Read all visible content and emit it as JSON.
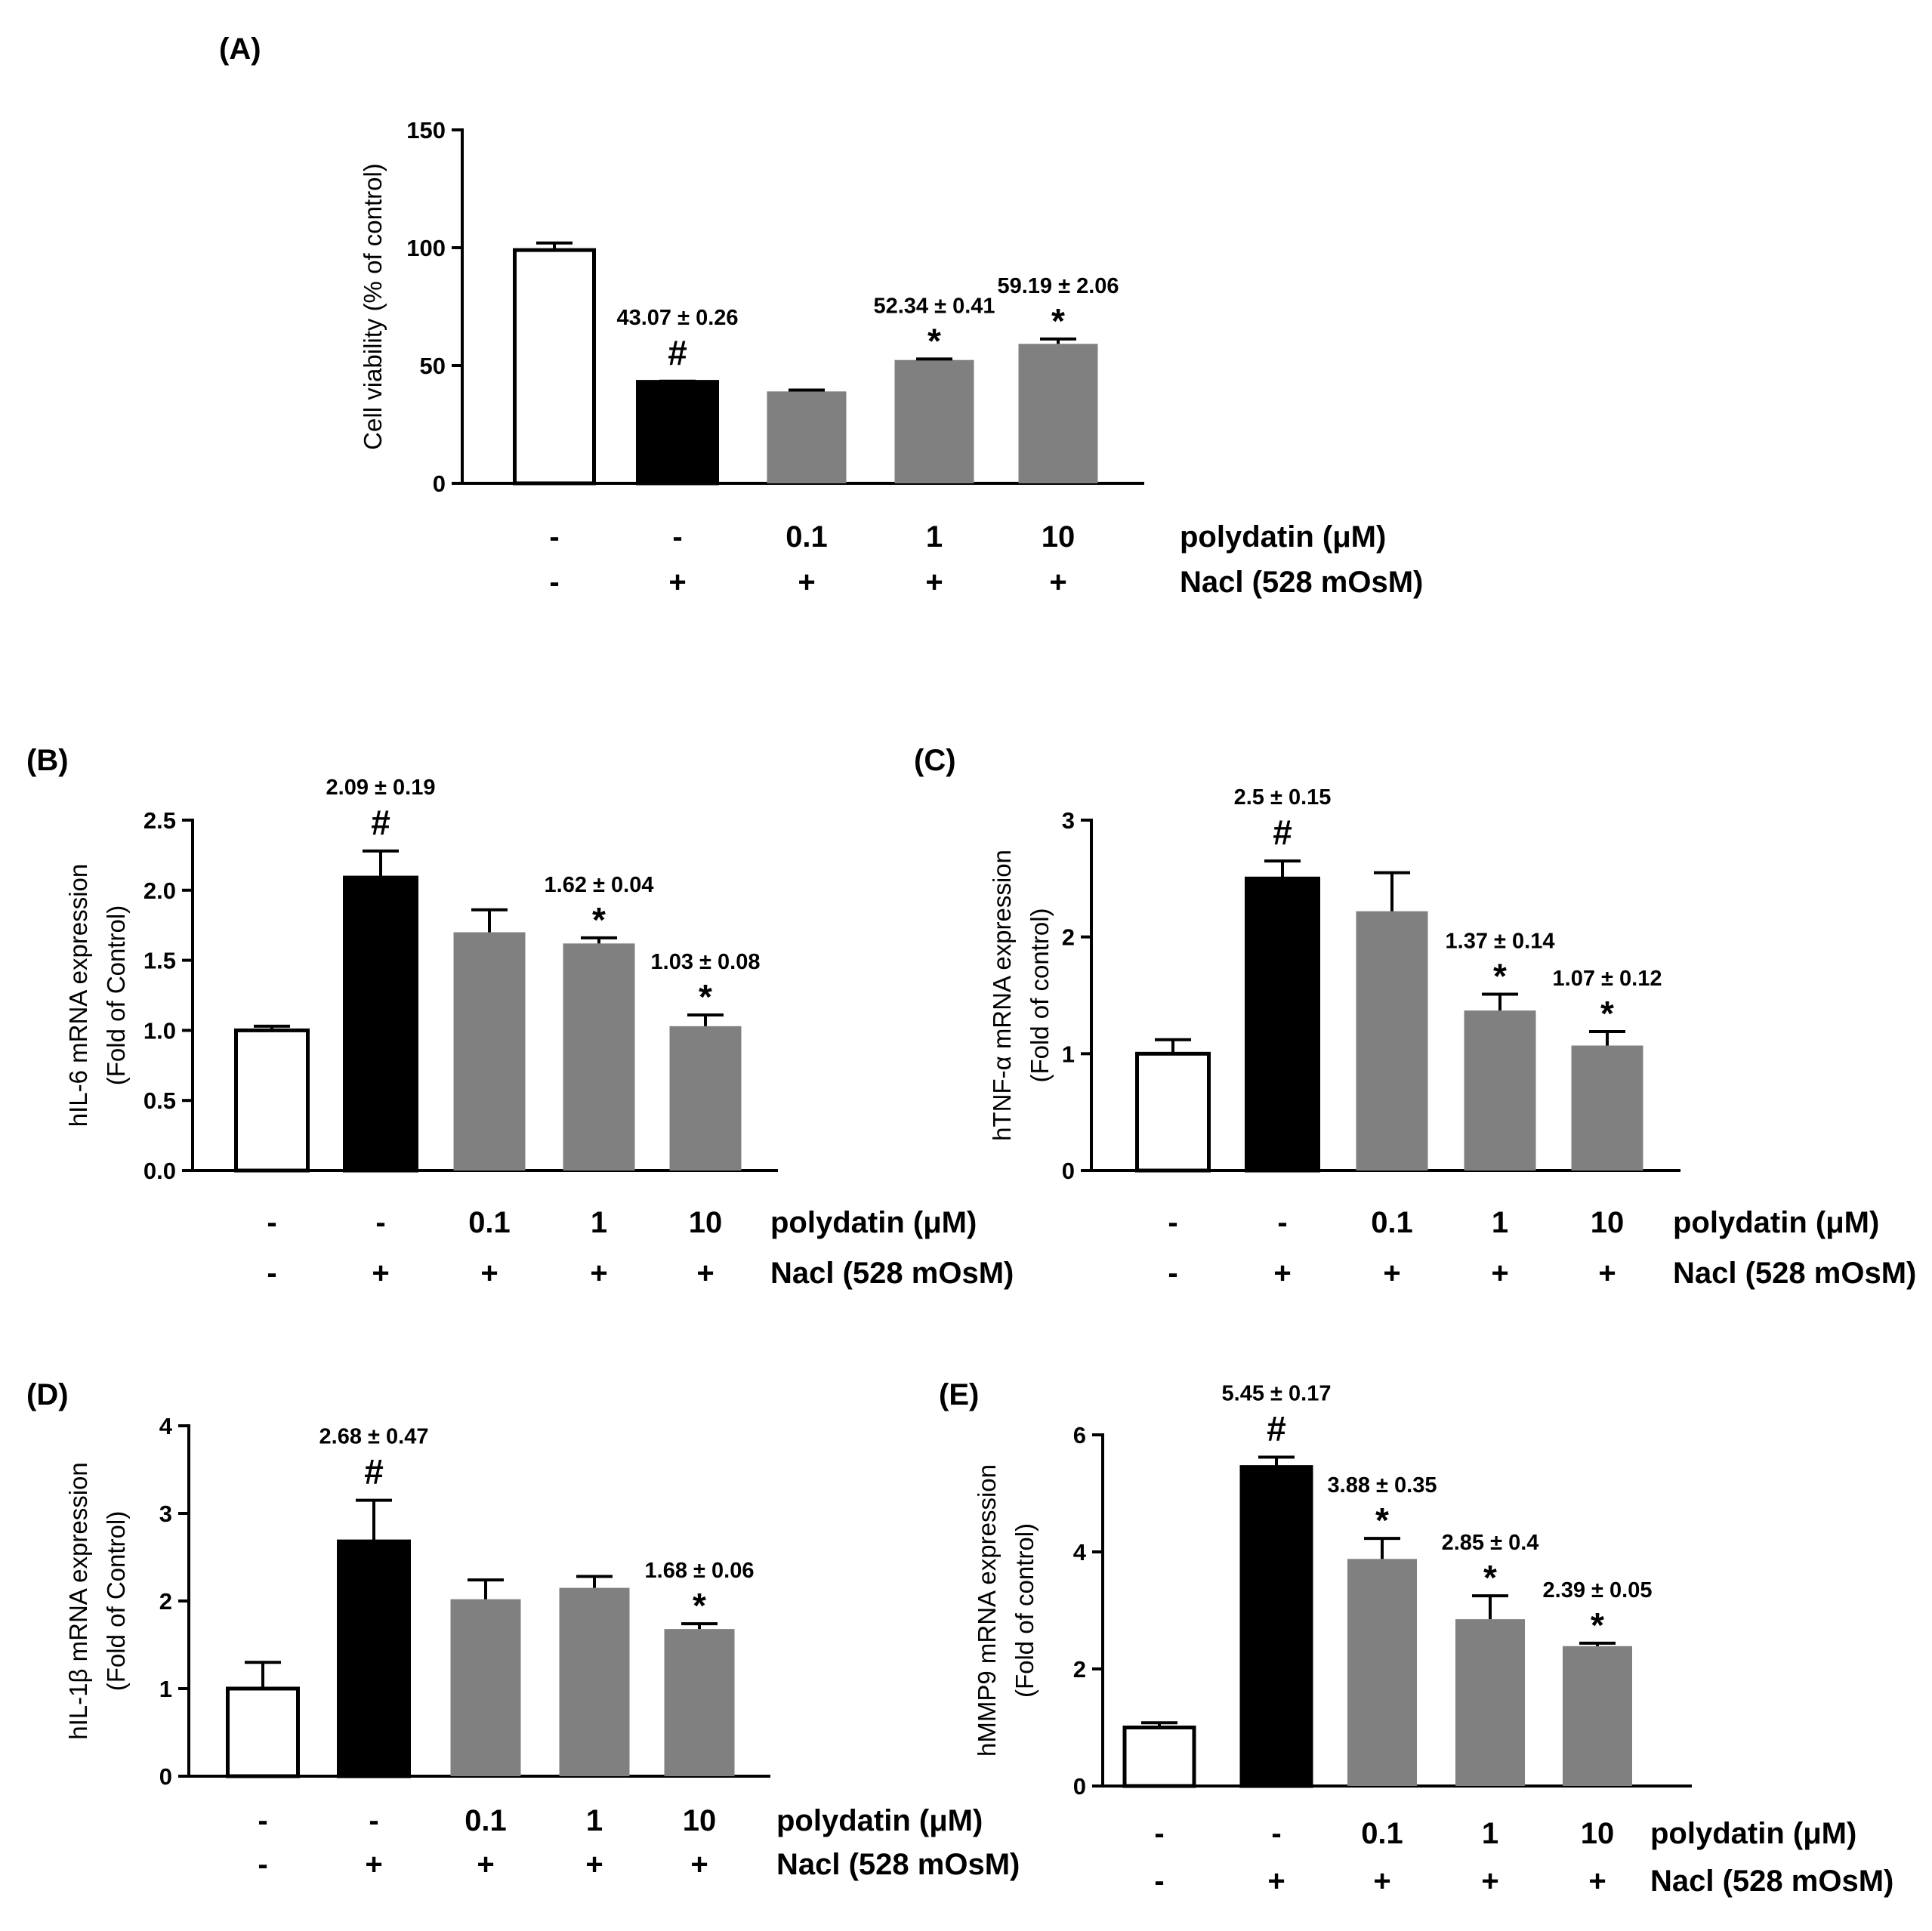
{
  "chart_data": [
    {
      "type": "bar",
      "panel": "(A)",
      "categories": [
        "control",
        "NaCl",
        "NaCl + polydatin 0.1",
        "NaCl + polydatin 1",
        "NaCl + polydatin 10"
      ],
      "values": [
        99,
        43.07,
        39,
        52.34,
        59.19
      ],
      "errors": [
        3,
        0.26,
        0.6,
        0.41,
        2.06
      ],
      "bar_colors": [
        "#ffffff",
        "#000000",
        "#808080",
        "#808080",
        "#808080"
      ],
      "annotations": [
        "",
        "43.07 ± 0.26",
        "",
        "52.34 ± 0.41",
        "59.19 ± 2.06"
      ],
      "markers": [
        "",
        "#",
        "",
        "*",
        "*"
      ],
      "ylabel": "Cell viability (% of control)",
      "ylim": [
        0,
        150
      ],
      "yticks": [
        "0",
        "50",
        "100",
        "150"
      ],
      "conditions": [
        {
          "label": "polydatin (μM)",
          "values": [
            "-",
            "-",
            "0.1",
            "1",
            "10"
          ]
        },
        {
          "label": "Nacl (528 mOsM)",
          "values": [
            "-",
            "+",
            "+",
            "+",
            "+"
          ]
        }
      ]
    },
    {
      "type": "bar",
      "panel": "(B)",
      "categories": [
        "control",
        "NaCl",
        "NaCl + polydatin 0.1",
        "NaCl + polydatin 1",
        "NaCl + polydatin 10"
      ],
      "values": [
        1.0,
        2.09,
        1.7,
        1.62,
        1.03
      ],
      "errors": [
        0.03,
        0.19,
        0.16,
        0.04,
        0.08
      ],
      "bar_colors": [
        "#ffffff",
        "#000000",
        "#808080",
        "#808080",
        "#808080"
      ],
      "annotations": [
        "",
        "2.09 ± 0.19",
        "",
        "1.62 ± 0.04",
        "1.03 ± 0.08"
      ],
      "markers": [
        "",
        "#",
        "",
        "*",
        "*"
      ],
      "ylabel": [
        "hIL-6 mRNA expression",
        "(Fold of Control)"
      ],
      "ylim": [
        0,
        2.5
      ],
      "yticks": [
        "0.0",
        "0.5",
        "1.0",
        "1.5",
        "2.0",
        "2.5"
      ],
      "conditions": [
        {
          "label": "polydatin (μM)",
          "values": [
            "-",
            "-",
            "0.1",
            "1",
            "10"
          ]
        },
        {
          "label": "Nacl (528 mOsM)",
          "values": [
            "-",
            "+",
            "+",
            "+",
            "+"
          ]
        }
      ]
    },
    {
      "type": "bar",
      "panel": "(C)",
      "categories": [
        "control",
        "NaCl",
        "NaCl + polydatin 0.1",
        "NaCl + polydatin 1",
        "NaCl + polydatin 10"
      ],
      "values": [
        1.0,
        2.5,
        2.22,
        1.37,
        1.07
      ],
      "errors": [
        0.12,
        0.15,
        0.33,
        0.14,
        0.12
      ],
      "bar_colors": [
        "#ffffff",
        "#000000",
        "#808080",
        "#808080",
        "#808080"
      ],
      "annotations": [
        "",
        "2.5 ± 0.15",
        "",
        "1.37 ± 0.14",
        "1.07 ± 0.12"
      ],
      "markers": [
        "",
        "#",
        "",
        "*",
        "*"
      ],
      "ylabel": [
        "hTNF-α mRNA expression",
        "(Fold of control)"
      ],
      "ylim": [
        0,
        3
      ],
      "yticks": [
        "0",
        "1",
        "2",
        "3"
      ],
      "conditions": [
        {
          "label": "polydatin (μM)",
          "values": [
            "-",
            "-",
            "0.1",
            "1",
            "10"
          ]
        },
        {
          "label": "Nacl (528 mOsM)",
          "values": [
            "-",
            "+",
            "+",
            "+",
            "+"
          ]
        }
      ]
    },
    {
      "type": "bar",
      "panel": "(D)",
      "categories": [
        "control",
        "NaCl",
        "NaCl + polydatin 0.1",
        "NaCl + polydatin 1",
        "NaCl + polydatin 10"
      ],
      "values": [
        1.0,
        2.68,
        2.02,
        2.15,
        1.68
      ],
      "errors": [
        0.3,
        0.47,
        0.22,
        0.13,
        0.06
      ],
      "bar_colors": [
        "#ffffff",
        "#000000",
        "#808080",
        "#808080",
        "#808080"
      ],
      "annotations": [
        "",
        "2.68 ± 0.47",
        "",
        "",
        "1.68 ± 0.06"
      ],
      "markers": [
        "",
        "#",
        "",
        "",
        "*"
      ],
      "ylabel": [
        "hIL-1β mRNA expression",
        "(Fold of Control)"
      ],
      "ylim": [
        0,
        4
      ],
      "yticks": [
        "0",
        "1",
        "2",
        "3",
        "4"
      ],
      "conditions": [
        {
          "label": "polydatin (μM)",
          "values": [
            "-",
            "-",
            "0.1",
            "1",
            "10"
          ]
        },
        {
          "label": "Nacl (528 mOsM)",
          "values": [
            "-",
            "+",
            "+",
            "+",
            "+"
          ]
        }
      ]
    },
    {
      "type": "bar",
      "panel": "(E)",
      "categories": [
        "control",
        "NaCl",
        "NaCl + polydatin 0.1",
        "NaCl + polydatin 1",
        "NaCl + polydatin 10"
      ],
      "values": [
        1.0,
        5.45,
        3.88,
        2.85,
        2.39
      ],
      "errors": [
        0.08,
        0.17,
        0.35,
        0.4,
        0.05
      ],
      "bar_colors": [
        "#ffffff",
        "#000000",
        "#808080",
        "#808080",
        "#808080"
      ],
      "annotations": [
        "",
        "5.45 ± 0.17",
        "3.88 ± 0.35",
        "2.85 ± 0.4",
        "2.39 ± 0.05"
      ],
      "markers": [
        "",
        "#",
        "*",
        "*",
        "*"
      ],
      "ylabel": [
        "hMMP9 mRNA expression",
        "(Fold of control)"
      ],
      "ylim": [
        0,
        6
      ],
      "yticks": [
        "0",
        "2",
        "4",
        "6"
      ],
      "conditions": [
        {
          "label": "polydatin (μM)",
          "values": [
            "-",
            "-",
            "0.1",
            "1",
            "10"
          ]
        },
        {
          "label": "Nacl (528 mOsM)",
          "values": [
            "-",
            "+",
            "+",
            "+",
            "+"
          ]
        }
      ]
    }
  ]
}
